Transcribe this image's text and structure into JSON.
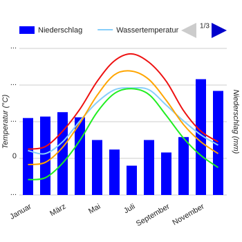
{
  "chart_data": {
    "type": "combo",
    "categories": [
      "Januar",
      null,
      "März",
      null,
      "Mai",
      null,
      "Juli",
      null,
      "September",
      null,
      "November",
      null
    ],
    "ylabel": "Temperatur (°C)",
    "y2label": "Niederschlag (mm)",
    "ylim": [
      -10,
      30
    ],
    "yticks": [
      {
        "value": -10,
        "label": "..."
      },
      0,
      {
        "value": 10,
        "label": "..."
      },
      {
        "value": 20,
        "label": "..."
      },
      {
        "value": 30,
        "label": "..."
      }
    ],
    "y2lim": [
      0,
      200
    ],
    "grid": true,
    "pager": "1/3",
    "series": [
      {
        "name": "Niederschlag",
        "type": "bar",
        "axis": "y2",
        "color": "#0000ff",
        "values": [
          105,
          107,
          113,
          106,
          75,
          62,
          40,
          75,
          58,
          79,
          158,
          142
        ]
      },
      {
        "name": "Wassertemperatur",
        "type": "line",
        "color": "#87cefa",
        "values": [
          2.1,
          1.3,
          4.5,
          10.2,
          15.3,
          18.7,
          19.2,
          18.7,
          14.5,
          10.2,
          6.4,
          3.6
        ]
      },
      {
        "type": "line",
        "color": "#ee1111",
        "values": [
          2.5,
          3.2,
          7.4,
          13.4,
          21,
          26.6,
          28.5,
          26.2,
          21,
          13,
          7.4,
          4.5
        ]
      },
      {
        "type": "line",
        "color": "#ffa500",
        "values": [
          -1.7,
          -1.1,
          3,
          9.6,
          17.2,
          22.8,
          23.8,
          21.5,
          15.8,
          9.2,
          4.5,
          1.3
        ]
      },
      {
        "type": "line",
        "color": "#22ee22",
        "values": [
          -5.8,
          -5.3,
          -1.3,
          4.9,
          12.6,
          17.7,
          19,
          17.4,
          11.7,
          5.5,
          0.8,
          -2.5
        ]
      }
    ]
  }
}
